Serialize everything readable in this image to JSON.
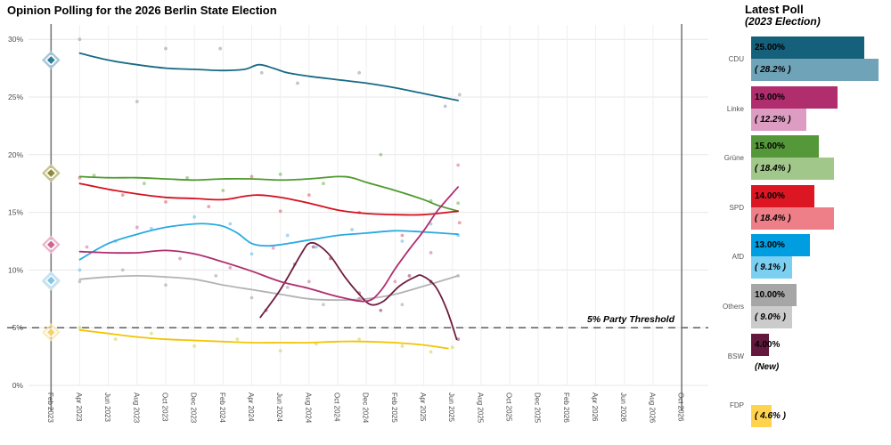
{
  "chart_data": {
    "type": "line",
    "title": "Opinion Polling for the 2026 Berlin State Election",
    "ylim": [
      0,
      31
    ],
    "grid": true,
    "y_ticks": [
      {
        "label": "0%",
        "value": 0
      },
      {
        "label": "5%",
        "value": 5
      },
      {
        "label": "10%",
        "value": 10
      },
      {
        "label": "15%",
        "value": 15
      },
      {
        "label": "20%",
        "value": 20
      },
      {
        "label": "25%",
        "value": 25
      },
      {
        "label": "30%",
        "value": 30
      }
    ],
    "x_tick_labels": [
      "Feb 2023",
      "Apr 2023",
      "Jun 2023",
      "Aug 2023",
      "Oct 2023",
      "Dec 2023",
      "Feb 2024",
      "Apr 2024",
      "Jun 2024",
      "Aug 2024",
      "Oct 2024",
      "Dec 2024",
      "Feb 2025",
      "Apr 2025",
      "Jun 2025",
      "Aug 2025",
      "Oct 2025",
      "Dec 2025",
      "Feb 2026",
      "Apr 2026",
      "Jun 2026",
      "Aug 2026",
      "Oct 2026"
    ],
    "x_months_domain": [
      0,
      44
    ],
    "threshold": {
      "value": 5,
      "label": "5% Party Threshold"
    },
    "election_lines": [
      {
        "name": "2023-election",
        "month": 0
      },
      {
        "name": "2026-election",
        "month": 44
      }
    ],
    "election_2023_results": [
      {
        "party": "CDU",
        "value": 28.2,
        "color": "#2e7d9c",
        "halo": "#a6c8d6",
        "opacity": 1
      },
      {
        "party": "Grüne/SPD",
        "value": 18.4,
        "color": "#8f8a3d",
        "halo": "#c9c48e",
        "opacity": 1
      },
      {
        "party": "Linke",
        "value": 12.2,
        "color": "#cf6595",
        "halo": "#ecb7cf",
        "opacity": 1
      },
      {
        "party": "Others",
        "value": 9.0,
        "color": "#b5b5b5",
        "halo": "#dddddd",
        "opacity": 0.9
      },
      {
        "party": "AfD",
        "value": 9.1,
        "color": "#82c7e6",
        "halo": "#c2e4f4",
        "opacity": 1
      },
      {
        "party": "FDP",
        "value": 4.6,
        "color": "#f6c94e",
        "halo": "#fbe6ad",
        "opacity": 0.8
      }
    ],
    "series": [
      {
        "name": "Others",
        "color": "#b3b3b3",
        "dot_color": "#9e9e9e",
        "trend": [
          [
            2,
            9.2
          ],
          [
            4,
            9.4
          ],
          [
            6,
            9.5
          ],
          [
            8,
            9.4
          ],
          [
            10,
            9.2
          ],
          [
            12,
            8.7
          ],
          [
            14,
            8.3
          ],
          [
            16,
            7.9
          ],
          [
            18,
            7.5
          ],
          [
            20,
            7.4
          ],
          [
            22,
            7.5
          ],
          [
            24,
            7.9
          ],
          [
            26,
            8.6
          ],
          [
            28.4,
            9.5
          ]
        ],
        "polls": [
          [
            2,
            9
          ],
          [
            5,
            10
          ],
          [
            8,
            8.7
          ],
          [
            11.5,
            9.5
          ],
          [
            14,
            7.6
          ],
          [
            16.5,
            8.5
          ],
          [
            19,
            7
          ],
          [
            21.5,
            8
          ],
          [
            24.5,
            7
          ],
          [
            26.5,
            9
          ],
          [
            28.4,
            9.5
          ]
        ]
      },
      {
        "name": "FDP",
        "color": "#f2c500",
        "dot_color": "#cdd24a",
        "trend": [
          [
            2,
            4.8
          ],
          [
            4,
            4.5
          ],
          [
            6,
            4.2
          ],
          [
            8,
            4.0
          ],
          [
            10,
            3.9
          ],
          [
            12,
            3.8
          ],
          [
            14,
            3.7
          ],
          [
            16,
            3.7
          ],
          [
            18,
            3.7
          ],
          [
            20,
            3.8
          ],
          [
            22,
            3.8
          ],
          [
            24,
            3.7
          ],
          [
            26,
            3.5
          ],
          [
            27.7,
            3.2
          ]
        ],
        "polls": [
          [
            2,
            5
          ],
          [
            4.5,
            4
          ],
          [
            7,
            4.5
          ],
          [
            10,
            3.4
          ],
          [
            13,
            4
          ],
          [
            16,
            3
          ],
          [
            18.5,
            3.6
          ],
          [
            21.5,
            4
          ],
          [
            24.5,
            3.4
          ],
          [
            26.5,
            2.9
          ],
          [
            28,
            3.3
          ]
        ]
      },
      {
        "name": "Grüne",
        "color": "#4e9a2e",
        "dot_color": "#6cb14c",
        "trend": [
          [
            2,
            18.1
          ],
          [
            4,
            18.0
          ],
          [
            6,
            18.0
          ],
          [
            8,
            17.9
          ],
          [
            10,
            17.8
          ],
          [
            12,
            17.9
          ],
          [
            14,
            17.9
          ],
          [
            16,
            17.8
          ],
          [
            18,
            17.9
          ],
          [
            20,
            18.1
          ],
          [
            21,
            18.0
          ],
          [
            22,
            17.6
          ],
          [
            24,
            16.9
          ],
          [
            26,
            16.1
          ],
          [
            27,
            15.6
          ],
          [
            28.4,
            15.1
          ]
        ],
        "polls": [
          [
            3,
            18.2
          ],
          [
            6.5,
            17.5
          ],
          [
            9.5,
            18
          ],
          [
            12,
            16.9
          ],
          [
            16,
            18.3
          ],
          [
            19,
            17.5
          ],
          [
            23,
            20
          ],
          [
            26.5,
            16
          ],
          [
            28.4,
            15.8
          ]
        ]
      },
      {
        "name": "SPD",
        "color": "#d6101f",
        "dot_color": "#e05560",
        "trend": [
          [
            2,
            17.5
          ],
          [
            4,
            17.0
          ],
          [
            6,
            16.6
          ],
          [
            8,
            16.3
          ],
          [
            10,
            16.2
          ],
          [
            12,
            16.1
          ],
          [
            13.5,
            16.4
          ],
          [
            14.5,
            16.5
          ],
          [
            16,
            16.3
          ],
          [
            18,
            15.8
          ],
          [
            20,
            15.2
          ],
          [
            22,
            14.9
          ],
          [
            24,
            14.8
          ],
          [
            26,
            14.8
          ],
          [
            28.4,
            15.1
          ]
        ],
        "polls": [
          [
            2,
            18
          ],
          [
            5,
            16.5
          ],
          [
            8,
            15.9
          ],
          [
            11,
            15.5
          ],
          [
            14,
            18.1
          ],
          [
            16,
            15.1
          ],
          [
            18,
            16.5
          ],
          [
            21.5,
            15
          ],
          [
            24.5,
            13
          ],
          [
            28.5,
            14.1
          ]
        ]
      },
      {
        "name": "CDU",
        "color": "#186a85",
        "dot_color": "#8a9aa0",
        "trend": [
          [
            2,
            28.8
          ],
          [
            4,
            28.2
          ],
          [
            6,
            27.8
          ],
          [
            8,
            27.5
          ],
          [
            10,
            27.4
          ],
          [
            12,
            27.3
          ],
          [
            13.5,
            27.4
          ],
          [
            14.5,
            27.8
          ],
          [
            15.5,
            27.5
          ],
          [
            16.5,
            27.1
          ],
          [
            18,
            26.8
          ],
          [
            20,
            26.5
          ],
          [
            22,
            26.2
          ],
          [
            24,
            25.8
          ],
          [
            26,
            25.3
          ],
          [
            28.4,
            24.7
          ]
        ],
        "polls": [
          [
            2,
            30
          ],
          [
            6,
            24.6
          ],
          [
            8,
            29.2
          ],
          [
            11.8,
            29.2
          ],
          [
            14.7,
            27.1
          ],
          [
            17.2,
            26.2
          ],
          [
            21.5,
            27.1
          ],
          [
            27.5,
            24.2
          ],
          [
            28.5,
            25.2
          ]
        ]
      },
      {
        "name": "AfD",
        "color": "#29a9e1",
        "dot_color": "#5bb8e8",
        "trend": [
          [
            2,
            10.9
          ],
          [
            4,
            12.3
          ],
          [
            6,
            13.1
          ],
          [
            8,
            13.7
          ],
          [
            10,
            14.0
          ],
          [
            11,
            14.0
          ],
          [
            12,
            13.8
          ],
          [
            13,
            13.2
          ],
          [
            14,
            12.3
          ],
          [
            15,
            12.1
          ],
          [
            16,
            12.2
          ],
          [
            18,
            12.6
          ],
          [
            20,
            13.0
          ],
          [
            22,
            13.2
          ],
          [
            24,
            13.4
          ],
          [
            26,
            13.3
          ],
          [
            28.4,
            13.1
          ]
        ],
        "polls": [
          [
            2,
            10
          ],
          [
            4.5,
            12.5
          ],
          [
            7,
            13.6
          ],
          [
            10,
            14.6
          ],
          [
            12.5,
            14
          ],
          [
            14,
            11.4
          ],
          [
            16.5,
            13
          ],
          [
            18.5,
            12
          ],
          [
            21,
            13.5
          ],
          [
            24.5,
            12.5
          ],
          [
            26.5,
            14
          ],
          [
            28.4,
            13
          ]
        ]
      },
      {
        "name": "BSW",
        "color": "#6e1e41",
        "dot_color": "#8d3a5c",
        "trend": [
          [
            14.6,
            5.9
          ],
          [
            16,
            8.3
          ],
          [
            17.5,
            11.5
          ],
          [
            18,
            12.3
          ],
          [
            18.6,
            12.2
          ],
          [
            19.5,
            11.2
          ],
          [
            20.5,
            9.4
          ],
          [
            21.5,
            7.9
          ],
          [
            22.3,
            7.0
          ],
          [
            23.2,
            7.3
          ],
          [
            24.3,
            8.6
          ],
          [
            25.4,
            9.4
          ],
          [
            25.9,
            9.5
          ],
          [
            26.8,
            8.6
          ],
          [
            27.6,
            6.6
          ],
          [
            28.3,
            4.0
          ]
        ],
        "polls": [
          [
            15,
            6.5
          ],
          [
            17,
            10.5
          ],
          [
            18.3,
            12
          ],
          [
            19.5,
            11
          ],
          [
            21.5,
            7.5
          ],
          [
            23,
            6.5
          ],
          [
            25,
            9.5
          ],
          [
            26.5,
            9
          ],
          [
            28.4,
            4
          ]
        ]
      },
      {
        "name": "Linke",
        "color": "#b02d6e",
        "dot_color": "#d4679c",
        "trend": [
          [
            2,
            11.6
          ],
          [
            4,
            11.5
          ],
          [
            6,
            11.5
          ],
          [
            8,
            11.7
          ],
          [
            10,
            11.4
          ],
          [
            12,
            10.7
          ],
          [
            14,
            9.9
          ],
          [
            16,
            9.0
          ],
          [
            18,
            8.4
          ],
          [
            20,
            7.7
          ],
          [
            22,
            7.3
          ],
          [
            23,
            8.2
          ],
          [
            24,
            10.1
          ],
          [
            25,
            11.8
          ],
          [
            26,
            13.4
          ],
          [
            27,
            15.2
          ],
          [
            28.4,
            17.2
          ]
        ],
        "polls": [
          [
            2.5,
            12
          ],
          [
            6,
            13.7
          ],
          [
            9,
            11
          ],
          [
            12.5,
            10.2
          ],
          [
            15.5,
            11.9
          ],
          [
            18,
            9
          ],
          [
            21.5,
            8
          ],
          [
            24,
            9
          ],
          [
            26.5,
            11.5
          ],
          [
            28.4,
            19.1
          ]
        ]
      }
    ]
  },
  "latest_poll": {
    "title": "Latest Poll",
    "subtitle": "(2023 Election)",
    "rows": [
      {
        "party": "CDU",
        "current_label": "25.00%",
        "current_value": 25,
        "previous_label": "( 28.2% )",
        "previous_value": 28.2,
        "current_color": "#15607a",
        "previous_color": "#6fa3b8"
      },
      {
        "party": "Linke",
        "current_label": "19.00%",
        "current_value": 19,
        "previous_label": "( 12.2% )",
        "previous_value": 12.2,
        "current_color": "#b02d6e",
        "previous_color": "#dd9dc2"
      },
      {
        "party": "Grüne",
        "current_label": "15.00%",
        "current_value": 15,
        "previous_label": "( 18.4% )",
        "previous_value": 18.4,
        "current_color": "#55983a",
        "previous_color": "#a2c78b"
      },
      {
        "party": "SPD",
        "current_label": "14.00%",
        "current_value": 14,
        "previous_label": "( 18.4% )",
        "previous_value": 18.4,
        "current_color": "#dd1624",
        "previous_color": "#ee7f89"
      },
      {
        "party": "AfD",
        "current_label": "13.00%",
        "current_value": 13,
        "previous_label": "( 9.1% )",
        "previous_value": 9.1,
        "current_color": "#009ee0",
        "previous_color": "#7bd0f2"
      },
      {
        "party": "Others",
        "current_label": "10.00%",
        "current_value": 10,
        "previous_label": "( 9.0% )",
        "previous_value": 9.0,
        "current_color": "#a6a6a6",
        "previous_color": "#cbcbcb"
      },
      {
        "party": "BSW",
        "current_label": "4.00%",
        "current_value": 4,
        "previous_label": "(New)",
        "previous_value": null,
        "current_color": "#63183d",
        "previous_color": null
      },
      {
        "party": "FDP",
        "current_label": null,
        "current_value": null,
        "previous_label": "( 4.6% )",
        "previous_value": 4.6,
        "current_color": null,
        "previous_color": "#ffd34e"
      }
    ]
  }
}
